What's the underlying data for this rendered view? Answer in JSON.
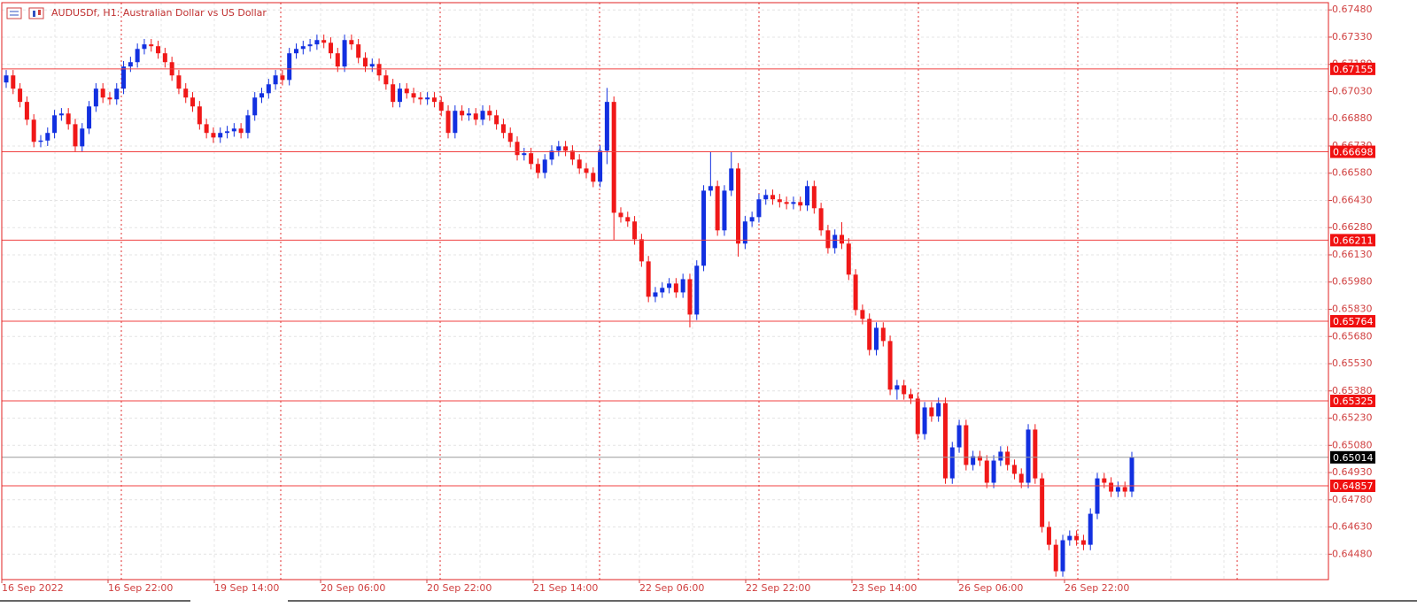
{
  "chart_data": {
    "type": "candlestick",
    "title": "AUDUSDf, H1:  Australian Dollar vs US Dollar",
    "up_color": "#1230e0",
    "down_color": "#f01818",
    "level_color": "#f04040",
    "price_color": "#9a9a9a",
    "grid": true,
    "ylim": [
      0.6434,
      0.6752
    ],
    "yticks": [
      {
        "value": 0.6748,
        "label": "0.67480"
      },
      {
        "value": 0.6733,
        "label": "0.67330"
      },
      {
        "value": 0.6718,
        "label": "0.67180"
      },
      {
        "value": 0.6703,
        "label": "0.67030"
      },
      {
        "value": 0.6688,
        "label": "0.66880"
      },
      {
        "value": 0.6673,
        "label": "0.66730"
      },
      {
        "value": 0.6658,
        "label": "0.66580"
      },
      {
        "value": 0.6643,
        "label": "0.66430"
      },
      {
        "value": 0.6628,
        "label": "0.66280"
      },
      {
        "value": 0.6613,
        "label": "0.66130"
      },
      {
        "value": 0.6598,
        "label": "0.65980"
      },
      {
        "value": 0.6583,
        "label": "0.65830"
      },
      {
        "value": 0.6568,
        "label": "0.65680"
      },
      {
        "value": 0.6553,
        "label": "0.65530"
      },
      {
        "value": 0.6538,
        "label": "0.65380"
      },
      {
        "value": 0.6523,
        "label": "0.65230"
      },
      {
        "value": 0.6508,
        "label": "0.65080"
      },
      {
        "value": 0.6493,
        "label": "0.64930"
      },
      {
        "value": 0.6478,
        "label": "0.64780"
      },
      {
        "value": 0.6463,
        "label": "0.64630"
      },
      {
        "value": 0.6448,
        "label": "0.64480"
      }
    ],
    "levels": [
      0.67155,
      0.66698,
      0.66211,
      0.65764,
      0.65325,
      0.64857
    ],
    "current_price": 0.65014,
    "xlabels": [
      "16 Sep 2022",
      "16 Sep 22:00",
      "19 Sep 14:00",
      "20 Sep 06:00",
      "20 Sep 22:00",
      "21 Sep 14:00",
      "22 Sep 06:00",
      "22 Sep 22:00",
      "23 Sep 14:00",
      "26 Sep 06:00",
      "26 Sep 22:00"
    ],
    "candles": [
      [
        0.6708,
        0.67149,
        0.6705,
        0.67119
      ],
      [
        0.67119,
        0.67149,
        0.67016,
        0.67046
      ],
      [
        0.67046,
        0.67076,
        0.66943,
        0.66973
      ],
      [
        0.66973,
        0.67003,
        0.66845,
        0.66875
      ],
      [
        0.66875,
        0.66905,
        0.66723,
        0.66753
      ],
      [
        0.66753,
        0.6679,
        0.66723,
        0.6676
      ],
      [
        0.6676,
        0.66832,
        0.6673,
        0.66802
      ],
      [
        0.66802,
        0.66929,
        0.66772,
        0.66899
      ],
      [
        0.66899,
        0.66939,
        0.66869,
        0.66909
      ],
      [
        0.66909,
        0.66939,
        0.6682,
        0.6685
      ],
      [
        0.6685,
        0.6688,
        0.66698,
        0.66728
      ],
      [
        0.66728,
        0.66856,
        0.66698,
        0.66826
      ],
      [
        0.66826,
        0.66978,
        0.66796,
        0.66948
      ],
      [
        0.66948,
        0.67076,
        0.66918,
        0.67046
      ],
      [
        0.67046,
        0.67076,
        0.66967,
        0.66997
      ],
      [
        0.66997,
        0.67027,
        0.66957,
        0.66987
      ],
      [
        0.66987,
        0.67076,
        0.66957,
        0.67046
      ],
      [
        0.67046,
        0.67198,
        0.67016,
        0.67168
      ],
      [
        0.67168,
        0.67222,
        0.67138,
        0.67192
      ],
      [
        0.67192,
        0.67295,
        0.67162,
        0.67265
      ],
      [
        0.67265,
        0.6732,
        0.67235,
        0.6729
      ],
      [
        0.6729,
        0.6732,
        0.6725,
        0.6728
      ],
      [
        0.6728,
        0.6731,
        0.67211,
        0.67241
      ],
      [
        0.67241,
        0.67271,
        0.67162,
        0.67192
      ],
      [
        0.67192,
        0.67222,
        0.67089,
        0.67119
      ],
      [
        0.67119,
        0.67149,
        0.67016,
        0.67046
      ],
      [
        0.67046,
        0.67076,
        0.66967,
        0.66997
      ],
      [
        0.66997,
        0.67027,
        0.66918,
        0.66948
      ],
      [
        0.66948,
        0.66978,
        0.6682,
        0.6685
      ],
      [
        0.6685,
        0.6688,
        0.66772,
        0.66802
      ],
      [
        0.66802,
        0.66832,
        0.66747,
        0.66777
      ],
      [
        0.66777,
        0.66832,
        0.66747,
        0.66802
      ],
      [
        0.66802,
        0.66841,
        0.66772,
        0.66811
      ],
      [
        0.66811,
        0.66856,
        0.66781,
        0.66826
      ],
      [
        0.66826,
        0.66856,
        0.66772,
        0.66802
      ],
      [
        0.66802,
        0.66929,
        0.66772,
        0.66899
      ],
      [
        0.66899,
        0.67027,
        0.66869,
        0.66997
      ],
      [
        0.66997,
        0.67051,
        0.66967,
        0.67021
      ],
      [
        0.67021,
        0.671,
        0.66991,
        0.6707
      ],
      [
        0.6707,
        0.67149,
        0.6704,
        0.67119
      ],
      [
        0.67119,
        0.67149,
        0.67064,
        0.67094
      ],
      [
        0.67094,
        0.67271,
        0.67064,
        0.67241
      ],
      [
        0.67241,
        0.67295,
        0.67211,
        0.67265
      ],
      [
        0.67265,
        0.6731,
        0.67235,
        0.6728
      ],
      [
        0.6728,
        0.6732,
        0.6725,
        0.6729
      ],
      [
        0.6729,
        0.67344,
        0.6726,
        0.67314
      ],
      [
        0.67314,
        0.67344,
        0.67269,
        0.67299
      ],
      [
        0.67299,
        0.67329,
        0.67211,
        0.67241
      ],
      [
        0.67241,
        0.67271,
        0.67138,
        0.67168
      ],
      [
        0.67168,
        0.67344,
        0.67138,
        0.67314
      ],
      [
        0.67314,
        0.67344,
        0.6726,
        0.6729
      ],
      [
        0.6729,
        0.6732,
        0.67186,
        0.67216
      ],
      [
        0.67216,
        0.67246,
        0.67138,
        0.67168
      ],
      [
        0.67168,
        0.67212,
        0.67138,
        0.67182
      ],
      [
        0.67182,
        0.67212,
        0.67089,
        0.67119
      ],
      [
        0.67119,
        0.67149,
        0.6704,
        0.6707
      ],
      [
        0.6707,
        0.671,
        0.66943,
        0.66973
      ],
      [
        0.66973,
        0.67076,
        0.66943,
        0.67046
      ],
      [
        0.67046,
        0.67076,
        0.66991,
        0.67021
      ],
      [
        0.67021,
        0.67051,
        0.66967,
        0.66997
      ],
      [
        0.66997,
        0.67027,
        0.66957,
        0.66987
      ],
      [
        0.66987,
        0.67027,
        0.66957,
        0.66997
      ],
      [
        0.66997,
        0.67027,
        0.66943,
        0.66973
      ],
      [
        0.66973,
        0.67003,
        0.66894,
        0.66924
      ],
      [
        0.66924,
        0.66954,
        0.66772,
        0.66802
      ],
      [
        0.66802,
        0.66954,
        0.66772,
        0.66924
      ],
      [
        0.66924,
        0.66954,
        0.66869,
        0.66899
      ],
      [
        0.66899,
        0.66939,
        0.66869,
        0.66909
      ],
      [
        0.66909,
        0.66939,
        0.66845,
        0.66875
      ],
      [
        0.66875,
        0.66954,
        0.66845,
        0.66924
      ],
      [
        0.66924,
        0.66954,
        0.66869,
        0.66899
      ],
      [
        0.66899,
        0.66929,
        0.6682,
        0.6685
      ],
      [
        0.6685,
        0.6688,
        0.66772,
        0.66802
      ],
      [
        0.66802,
        0.66832,
        0.66723,
        0.66753
      ],
      [
        0.66753,
        0.66783,
        0.6665,
        0.6668
      ],
      [
        0.6668,
        0.6672,
        0.6665,
        0.6669
      ],
      [
        0.6669,
        0.6672,
        0.66601,
        0.66631
      ],
      [
        0.66631,
        0.66661,
        0.66552,
        0.66582
      ],
      [
        0.66582,
        0.66685,
        0.66552,
        0.66655
      ],
      [
        0.66655,
        0.66734,
        0.66625,
        0.66704
      ],
      [
        0.66704,
        0.66758,
        0.66674,
        0.66728
      ],
      [
        0.66728,
        0.66758,
        0.66674,
        0.66704
      ],
      [
        0.66704,
        0.66734,
        0.66625,
        0.66655
      ],
      [
        0.66655,
        0.66685,
        0.66576,
        0.66606
      ],
      [
        0.66606,
        0.66636,
        0.66552,
        0.66582
      ],
      [
        0.66582,
        0.66612,
        0.66503,
        0.66533
      ],
      [
        0.66533,
        0.66734,
        0.66503,
        0.66704
      ],
      [
        0.66704,
        0.6705,
        0.6663,
        0.66973
      ],
      [
        0.66973,
        0.67003,
        0.6621,
        0.66362
      ],
      [
        0.66362,
        0.66392,
        0.66308,
        0.66338
      ],
      [
        0.66338,
        0.66368,
        0.66284,
        0.66314
      ],
      [
        0.66314,
        0.66344,
        0.66186,
        0.66216
      ],
      [
        0.66216,
        0.66246,
        0.66064,
        0.66094
      ],
      [
        0.66094,
        0.66124,
        0.65869,
        0.65899
      ],
      [
        0.65899,
        0.65953,
        0.65869,
        0.65923
      ],
      [
        0.65923,
        0.65978,
        0.65893,
        0.65948
      ],
      [
        0.65948,
        0.66002,
        0.65918,
        0.65972
      ],
      [
        0.65972,
        0.66002,
        0.65893,
        0.65923
      ],
      [
        0.65923,
        0.66026,
        0.65893,
        0.65996
      ],
      [
        0.65996,
        0.66026,
        0.6573,
        0.65801
      ],
      [
        0.65801,
        0.661,
        0.65771,
        0.6607
      ],
      [
        0.6607,
        0.66514,
        0.6604,
        0.66484
      ],
      [
        0.66484,
        0.667,
        0.66454,
        0.66509
      ],
      [
        0.66509,
        0.66539,
        0.66235,
        0.66265
      ],
      [
        0.66265,
        0.66514,
        0.66235,
        0.66484
      ],
      [
        0.66484,
        0.667,
        0.66454,
        0.66606
      ],
      [
        0.66606,
        0.66636,
        0.6612,
        0.66192
      ],
      [
        0.66192,
        0.66344,
        0.66162,
        0.66314
      ],
      [
        0.66314,
        0.66368,
        0.66284,
        0.66338
      ],
      [
        0.66338,
        0.66466,
        0.66308,
        0.66436
      ],
      [
        0.66436,
        0.6649,
        0.66406,
        0.6646
      ],
      [
        0.6646,
        0.6649,
        0.66406,
        0.66436
      ],
      [
        0.66436,
        0.66466,
        0.66391,
        0.66421
      ],
      [
        0.66421,
        0.66451,
        0.66381,
        0.66411
      ],
      [
        0.66411,
        0.66451,
        0.66381,
        0.66421
      ],
      [
        0.66421,
        0.66451,
        0.66372,
        0.66402
      ],
      [
        0.66402,
        0.66539,
        0.66372,
        0.66509
      ],
      [
        0.66509,
        0.66539,
        0.66357,
        0.66387
      ],
      [
        0.66387,
        0.66417,
        0.66235,
        0.66265
      ],
      [
        0.66265,
        0.66295,
        0.66137,
        0.66167
      ],
      [
        0.66167,
        0.6627,
        0.66137,
        0.6624
      ],
      [
        0.6624,
        0.6631,
        0.66162,
        0.66192
      ],
      [
        0.66192,
        0.66222,
        0.65991,
        0.66021
      ],
      [
        0.66021,
        0.66051,
        0.65796,
        0.65826
      ],
      [
        0.65826,
        0.65856,
        0.65747,
        0.65777
      ],
      [
        0.65777,
        0.65807,
        0.65576,
        0.65606
      ],
      [
        0.65606,
        0.65758,
        0.65576,
        0.65728
      ],
      [
        0.65728,
        0.65758,
        0.65625,
        0.65655
      ],
      [
        0.65655,
        0.65685,
        0.65357,
        0.65387
      ],
      [
        0.65387,
        0.65441,
        0.65332,
        0.65411
      ],
      [
        0.65411,
        0.65441,
        0.65332,
        0.65362
      ],
      [
        0.65362,
        0.65392,
        0.65308,
        0.65338
      ],
      [
        0.65338,
        0.65368,
        0.65112,
        0.65142
      ],
      [
        0.65142,
        0.65319,
        0.65112,
        0.65289
      ],
      [
        0.65289,
        0.65319,
        0.6521,
        0.6524
      ],
      [
        0.6524,
        0.65343,
        0.6521,
        0.65313
      ],
      [
        0.65313,
        0.65343,
        0.64868,
        0.64898
      ],
      [
        0.64898,
        0.65099,
        0.64868,
        0.65069
      ],
      [
        0.65069,
        0.65221,
        0.65039,
        0.65191
      ],
      [
        0.65191,
        0.65221,
        0.64942,
        0.64972
      ],
      [
        0.64972,
        0.6505,
        0.64942,
        0.6502
      ],
      [
        0.6502,
        0.6505,
        0.64966,
        0.64996
      ],
      [
        0.64996,
        0.65026,
        0.64844,
        0.64874
      ],
      [
        0.64874,
        0.65026,
        0.64844,
        0.64996
      ],
      [
        0.64996,
        0.65075,
        0.64966,
        0.65045
      ],
      [
        0.65045,
        0.65075,
        0.64942,
        0.64972
      ],
      [
        0.64972,
        0.65002,
        0.64893,
        0.64923
      ],
      [
        0.64923,
        0.64953,
        0.64844,
        0.64874
      ],
      [
        0.64874,
        0.65197,
        0.64844,
        0.65167
      ],
      [
        0.65167,
        0.65197,
        0.64868,
        0.64898
      ],
      [
        0.64898,
        0.64928,
        0.646,
        0.6463
      ],
      [
        0.6463,
        0.6466,
        0.64502,
        0.64532
      ],
      [
        0.64532,
        0.64562,
        0.64356,
        0.64386
      ],
      [
        0.64386,
        0.64587,
        0.64356,
        0.64557
      ],
      [
        0.64557,
        0.64611,
        0.64527,
        0.64581
      ],
      [
        0.64581,
        0.64611,
        0.64527,
        0.64557
      ],
      [
        0.64557,
        0.64587,
        0.64502,
        0.64532
      ],
      [
        0.64532,
        0.64733,
        0.64502,
        0.64703
      ],
      [
        0.64703,
        0.64928,
        0.64673,
        0.64898
      ],
      [
        0.64898,
        0.64928,
        0.64844,
        0.64874
      ],
      [
        0.64874,
        0.64904,
        0.64795,
        0.64825
      ],
      [
        0.64825,
        0.6488,
        0.64795,
        0.6485
      ],
      [
        0.6485,
        0.6488,
        0.64795,
        0.64825
      ],
      [
        0.64825,
        0.65044,
        0.64795,
        0.65014
      ]
    ]
  }
}
